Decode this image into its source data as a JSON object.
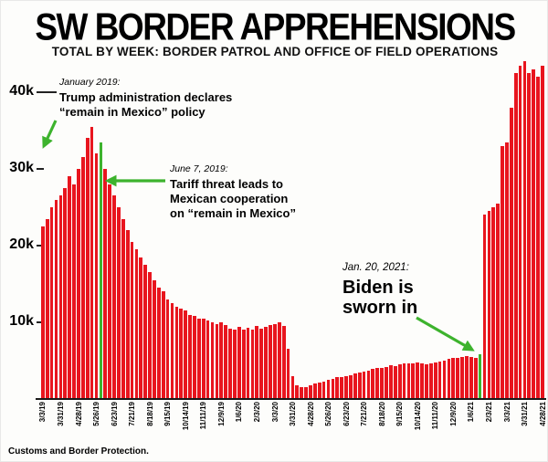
{
  "header": {
    "title": "SW BORDER APPREHENSIONS",
    "subtitle": "TOTAL BY WEEK: BORDER PATROL AND OFFICE OF FIELD OPERATIONS"
  },
  "source": "Customs and Border Protection.",
  "colors": {
    "bar_red": "#e8151e",
    "highlight_green": "#3db32d",
    "text_black": "#000000"
  },
  "chart_data": {
    "type": "bar",
    "title": "SW BORDER APPREHENSIONS",
    "subtitle": "TOTAL BY WEEK: BORDER PATROL AND OFFICE OF FIELD OPERATIONS",
    "unit": "apprehensions per week",
    "grid": false,
    "legend": false,
    "ylim": [
      0,
      45000
    ],
    "yticks": [
      {
        "value": 40000,
        "label": "40k"
      },
      {
        "value": 30000,
        "label": "30k"
      },
      {
        "value": 20000,
        "label": "20k"
      },
      {
        "value": 10000,
        "label": "10k"
      }
    ],
    "ticks_every_n_bars": 4,
    "x_tick_labels": [
      "3/3/19",
      "3/31/19",
      "4/28/19",
      "5/26/19",
      "6/23/19",
      "7/21/19",
      "8/18/19",
      "9/15/19",
      "10/14/19",
      "11/11/19",
      "12/9/19",
      "1/6/20",
      "2/3/20",
      "3/3/20",
      "3/31/20",
      "4/28/20",
      "5/26/20",
      "6/23/20",
      "7/21/20",
      "8/18/20",
      "9/15/20",
      "10/14/20",
      "11/11/20",
      "12/9/20",
      "1/6/21",
      "2/3/21",
      "3/3/21",
      "3/31/21",
      "4/28/21"
    ],
    "values": [
      22500,
      23500,
      25000,
      26000,
      26500,
      27500,
      29000,
      28000,
      30000,
      31500,
      34000,
      35500,
      32000,
      33500,
      30000,
      28000,
      26500,
      25000,
      23500,
      22000,
      20500,
      19500,
      18500,
      17500,
      16500,
      15500,
      14500,
      14000,
      13000,
      12500,
      12000,
      11800,
      11500,
      11000,
      10800,
      10500,
      10500,
      10200,
      10000,
      9800,
      10000,
      9600,
      9200,
      9000,
      9400,
      9000,
      9300,
      9000,
      9500,
      9200,
      9400,
      9600,
      9800,
      10000,
      9500,
      6500,
      3000,
      1800,
      1500,
      1600,
      1800,
      2000,
      2200,
      2300,
      2500,
      2600,
      2800,
      2900,
      3000,
      3100,
      3300,
      3400,
      3600,
      3700,
      3900,
      4000,
      4100,
      4200,
      4400,
      4300,
      4500,
      4600,
      4700,
      4600,
      4800,
      4600,
      4500,
      4700,
      4800,
      4900,
      5000,
      5200,
      5300,
      5400,
      5500,
      5600,
      5500,
      5300,
      5800,
      24000,
      24500,
      25000,
      25500,
      33000,
      33500,
      38000,
      42500,
      43500,
      44000,
      42500,
      43000,
      42000,
      43500
    ],
    "highlights": [
      {
        "index": 13,
        "meaning": "June 7, 2019 tariff threat week",
        "color": "#3db32d"
      },
      {
        "index": 98,
        "meaning": "Jan. 20, 2021 Biden inauguration week",
        "color": "#3db32d"
      }
    ],
    "annotations": [
      {
        "date": "January 2019:",
        "text": [
          "Trump administration declares",
          "“remain in Mexico” policy"
        ]
      },
      {
        "date": "June 7, 2019:",
        "text": [
          "Tariff threat leads to",
          "Mexican cooperation",
          "on “remain in Mexico”"
        ]
      },
      {
        "date": "Jan. 20, 2021:",
        "text": [
          "Biden is",
          "sworn in"
        ]
      }
    ]
  }
}
